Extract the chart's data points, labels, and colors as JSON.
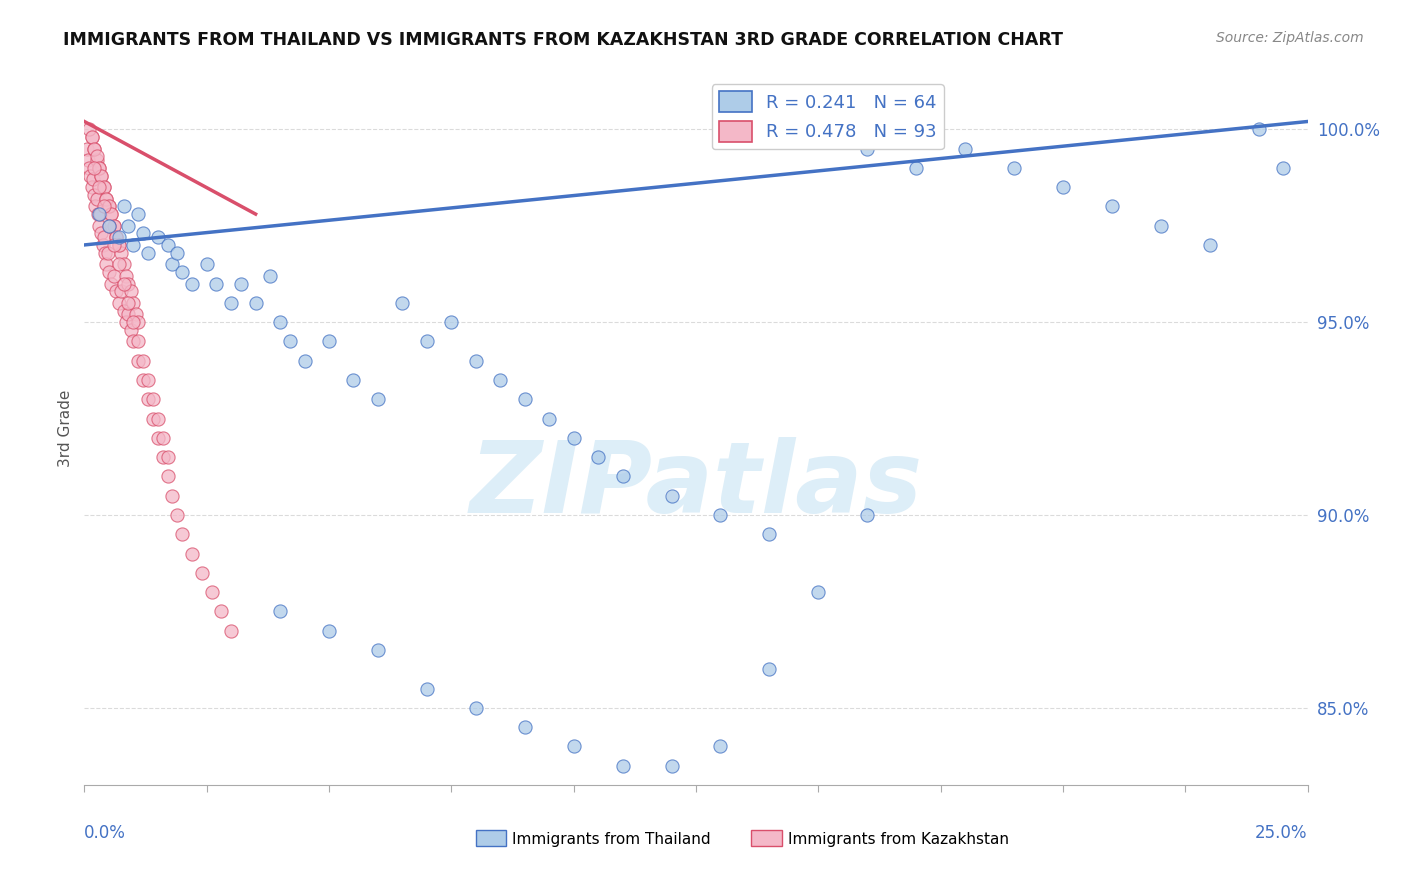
{
  "title": "IMMIGRANTS FROM THAILAND VS IMMIGRANTS FROM KAZAKHSTAN 3RD GRADE CORRELATION CHART",
  "source": "Source: ZipAtlas.com",
  "ylabel": "3rd Grade",
  "xmin": 0.0,
  "xmax": 25.0,
  "ymin": 83.0,
  "ymax": 101.5,
  "yticks": [
    85.0,
    90.0,
    95.0,
    100.0
  ],
  "ytick_labels": [
    "85.0%",
    "90.0%",
    "95.0%",
    "100.0%"
  ],
  "legend_r1": "R = 0.241",
  "legend_n1": "N = 64",
  "legend_r2": "R = 0.478",
  "legend_n2": "N = 93",
  "color_thailand": "#aecce8",
  "color_kazakhstan": "#f4b8c8",
  "trendline_color_thailand": "#4472c4",
  "trendline_color_kazakhstan": "#d94f6b",
  "background_color": "#ffffff",
  "watermark_color": "#ddeef8",
  "ylabel_color": "#555555",
  "tick_color": "#4472c4",
  "grid_color": "#cccccc",
  "thailand_x": [
    0.3,
    0.5,
    0.7,
    0.8,
    0.9,
    1.0,
    1.1,
    1.2,
    1.3,
    1.5,
    1.7,
    1.8,
    1.9,
    2.0,
    2.2,
    2.5,
    2.7,
    3.0,
    3.2,
    3.5,
    3.8,
    4.0,
    4.2,
    4.5,
    5.0,
    5.5,
    6.0,
    6.5,
    7.0,
    7.5,
    8.0,
    8.5,
    9.0,
    9.5,
    10.0,
    10.5,
    11.0,
    12.0,
    13.0,
    14.0,
    15.0,
    16.0,
    17.0,
    18.0,
    19.0,
    20.0,
    21.0,
    22.0,
    23.0,
    24.0,
    24.5,
    4.0,
    5.0,
    6.0,
    7.0,
    8.0,
    9.0,
    10.0,
    11.0,
    12.0,
    13.0,
    14.0,
    15.0,
    16.0
  ],
  "thailand_y": [
    97.8,
    97.5,
    97.2,
    98.0,
    97.5,
    97.0,
    97.8,
    97.3,
    96.8,
    97.2,
    97.0,
    96.5,
    96.8,
    96.3,
    96.0,
    96.5,
    96.0,
    95.5,
    96.0,
    95.5,
    96.2,
    95.0,
    94.5,
    94.0,
    94.5,
    93.5,
    93.0,
    95.5,
    94.5,
    95.0,
    94.0,
    93.5,
    93.0,
    92.5,
    92.0,
    91.5,
    91.0,
    90.5,
    90.0,
    89.5,
    100.0,
    99.5,
    99.0,
    99.5,
    99.0,
    98.5,
    98.0,
    97.5,
    97.0,
    100.0,
    99.0,
    87.5,
    87.0,
    86.5,
    85.5,
    85.0,
    84.5,
    84.0,
    83.5,
    83.5,
    84.0,
    86.0,
    88.0,
    90.0
  ],
  "kazakhstan_x": [
    0.05,
    0.08,
    0.1,
    0.12,
    0.15,
    0.18,
    0.2,
    0.22,
    0.25,
    0.28,
    0.3,
    0.32,
    0.35,
    0.38,
    0.4,
    0.42,
    0.45,
    0.48,
    0.5,
    0.55,
    0.6,
    0.65,
    0.7,
    0.75,
    0.8,
    0.85,
    0.9,
    0.95,
    1.0,
    1.1,
    1.2,
    1.3,
    1.4,
    1.5,
    1.6,
    1.7,
    1.8,
    1.9,
    2.0,
    2.2,
    2.4,
    2.6,
    2.8,
    3.0,
    0.15,
    0.2,
    0.25,
    0.3,
    0.35,
    0.4,
    0.45,
    0.5,
    0.55,
    0.6,
    0.65,
    0.7,
    0.75,
    0.8,
    0.85,
    0.9,
    0.95,
    1.0,
    1.05,
    1.1,
    0.1,
    0.15,
    0.2,
    0.25,
    0.3,
    0.35,
    0.4,
    0.45,
    0.5,
    0.55,
    0.6,
    0.65,
    0.7,
    0.2,
    0.3,
    0.4,
    0.5,
    0.6,
    0.7,
    0.8,
    0.9,
    1.0,
    1.1,
    1.2,
    1.3,
    1.4,
    1.5,
    1.6,
    1.7
  ],
  "kazakhstan_y": [
    99.5,
    99.2,
    99.0,
    98.8,
    98.5,
    98.7,
    98.3,
    98.0,
    98.2,
    97.8,
    97.5,
    97.8,
    97.3,
    97.0,
    97.2,
    96.8,
    96.5,
    96.8,
    96.3,
    96.0,
    96.2,
    95.8,
    95.5,
    95.8,
    95.3,
    95.0,
    95.2,
    94.8,
    94.5,
    94.0,
    93.5,
    93.0,
    92.5,
    92.0,
    91.5,
    91.0,
    90.5,
    90.0,
    89.5,
    89.0,
    88.5,
    88.0,
    87.5,
    87.0,
    99.8,
    99.5,
    99.2,
    99.0,
    98.8,
    98.5,
    98.2,
    98.0,
    97.8,
    97.5,
    97.2,
    97.0,
    96.8,
    96.5,
    96.2,
    96.0,
    95.8,
    95.5,
    95.2,
    95.0,
    100.0,
    99.8,
    99.5,
    99.3,
    99.0,
    98.8,
    98.5,
    98.2,
    98.0,
    97.8,
    97.5,
    97.2,
    97.0,
    99.0,
    98.5,
    98.0,
    97.5,
    97.0,
    96.5,
    96.0,
    95.5,
    95.0,
    94.5,
    94.0,
    93.5,
    93.0,
    92.5,
    92.0,
    91.5
  ],
  "trendline_thai_x0": 0.0,
  "trendline_thai_x1": 25.0,
  "trendline_thai_y0": 97.0,
  "trendline_thai_y1": 100.2,
  "trendline_kaz_x0": 0.0,
  "trendline_kaz_x1": 3.5,
  "trendline_kaz_y0": 100.2,
  "trendline_kaz_y1": 97.8
}
